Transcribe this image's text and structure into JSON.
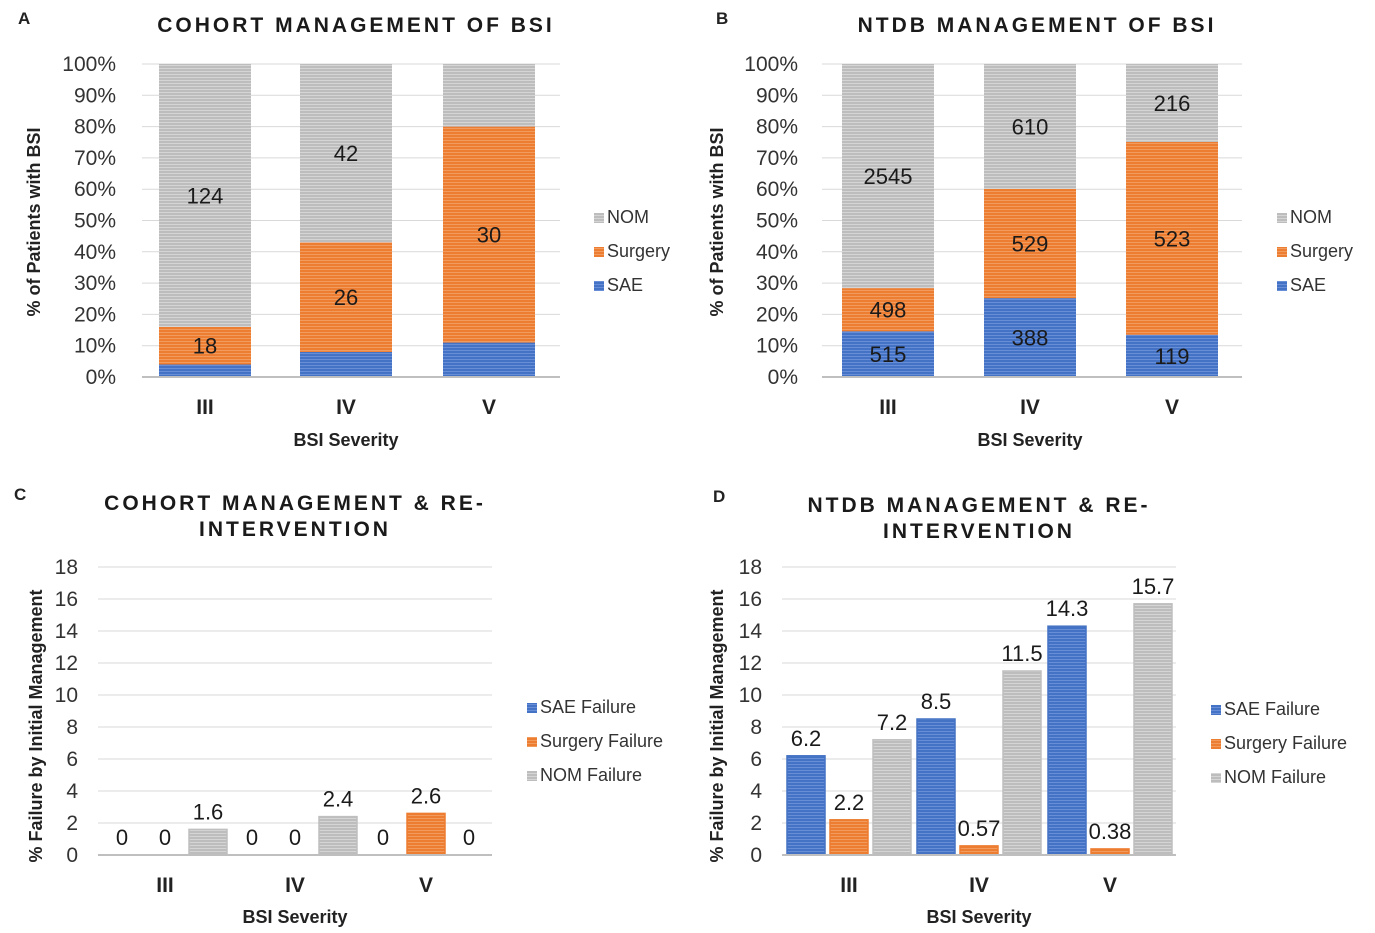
{
  "colors": {
    "SAE": "#4472c4",
    "Surgery": "#ed7d31",
    "NOM": "#bfbfbf",
    "SAE Failure": "#4472c4",
    "Surgery Failure": "#ed7d31",
    "NOM Failure": "#bfbfbf"
  },
  "chart_data": [
    {
      "panel": "A",
      "type": "bar",
      "stacked": true,
      "title": "COHORT MANAGEMENT OF BSI",
      "xlabel": "BSI Severity",
      "ylabel": "% of Patients with BSI",
      "categories": [
        "III",
        "IV",
        "V"
      ],
      "yticks": [
        "0%",
        "10%",
        "20%",
        "30%",
        "40%",
        "50%",
        "60%",
        "70%",
        "80%",
        "90%",
        "100%"
      ],
      "ylim": [
        0,
        100
      ],
      "legend_position": "right",
      "series": [
        {
          "name": "SAE",
          "values": [
            4,
            8,
            11
          ],
          "labels": [
            "",
            "",
            ""
          ]
        },
        {
          "name": "Surgery",
          "values": [
            12,
            35,
            69
          ],
          "labels": [
            "18",
            "26",
            "30"
          ]
        },
        {
          "name": "NOM",
          "values": [
            84,
            57,
            20
          ],
          "labels": [
            "124",
            "42",
            ""
          ]
        }
      ],
      "legend": [
        "NOM",
        "Surgery",
        "SAE"
      ]
    },
    {
      "panel": "B",
      "type": "bar",
      "stacked": true,
      "title": "NTDB MANAGEMENT OF BSI",
      "xlabel": "BSI Severity",
      "ylabel": "% of Patients with BSI",
      "categories": [
        "III",
        "IV",
        "V"
      ],
      "yticks": [
        "0%",
        "10%",
        "20%",
        "30%",
        "40%",
        "50%",
        "60%",
        "70%",
        "80%",
        "90%",
        "100%"
      ],
      "ylim": [
        0,
        100
      ],
      "legend_position": "right",
      "series": [
        {
          "name": "SAE",
          "values": [
            14.6,
            25.2,
            13.5
          ],
          "labels": [
            "515",
            "388",
            "119"
          ]
        },
        {
          "name": "Surgery",
          "values": [
            13.8,
            34.9,
            61.6
          ],
          "labels": [
            "498",
            "529",
            "523"
          ]
        },
        {
          "name": "NOM",
          "values": [
            71.6,
            39.9,
            24.9
          ],
          "labels": [
            "2545",
            "610",
            "216"
          ]
        }
      ],
      "legend": [
        "NOM",
        "Surgery",
        "SAE"
      ]
    },
    {
      "panel": "C",
      "type": "bar",
      "stacked": false,
      "title": [
        "COHORT MANAGEMENT & RE-",
        "INTERVENTION"
      ],
      "xlabel": "BSI Severity",
      "ylabel": "% Failure by Initial Management",
      "categories": [
        "III",
        "IV",
        "V"
      ],
      "yticks": [
        "0",
        "2",
        "4",
        "6",
        "8",
        "10",
        "12",
        "14",
        "16",
        "18"
      ],
      "ylim": [
        0,
        18
      ],
      "legend_position": "right",
      "series": [
        {
          "name": "SAE Failure",
          "values": [
            0,
            0,
            0
          ],
          "labels": [
            "0",
            "0",
            "0"
          ]
        },
        {
          "name": "Surgery Failure",
          "values": [
            0,
            0,
            2.6
          ],
          "labels": [
            "0",
            "0",
            "2.6"
          ]
        },
        {
          "name": "NOM Failure",
          "values": [
            1.6,
            2.4,
            0
          ],
          "labels": [
            "1.6",
            "2.4",
            "0"
          ]
        }
      ],
      "legend": [
        "SAE Failure",
        "Surgery Failure",
        "NOM Failure"
      ]
    },
    {
      "panel": "D",
      "type": "bar",
      "stacked": false,
      "title": [
        "NTDB MANAGEMENT & RE-",
        "INTERVENTION"
      ],
      "xlabel": "BSI Severity",
      "ylabel": "% Failure by Initial Management",
      "categories": [
        "III",
        "IV",
        "V"
      ],
      "yticks": [
        "0",
        "2",
        "4",
        "6",
        "8",
        "10",
        "12",
        "14",
        "16",
        "18"
      ],
      "ylim": [
        0,
        18
      ],
      "legend_position": "right",
      "series": [
        {
          "name": "SAE Failure",
          "values": [
            6.2,
            8.5,
            14.3
          ],
          "labels": [
            "6.2",
            "8.5",
            "14.3"
          ]
        },
        {
          "name": "Surgery Failure",
          "values": [
            2.2,
            0.57,
            0.38
          ],
          "labels": [
            "2.2",
            "0.57",
            "0.38"
          ]
        },
        {
          "name": "NOM Failure",
          "values": [
            7.2,
            11.5,
            15.7
          ],
          "labels": [
            "7.2",
            "11.5",
            "15.7"
          ]
        }
      ],
      "legend": [
        "SAE Failure",
        "Surgery Failure",
        "NOM Failure"
      ]
    }
  ]
}
